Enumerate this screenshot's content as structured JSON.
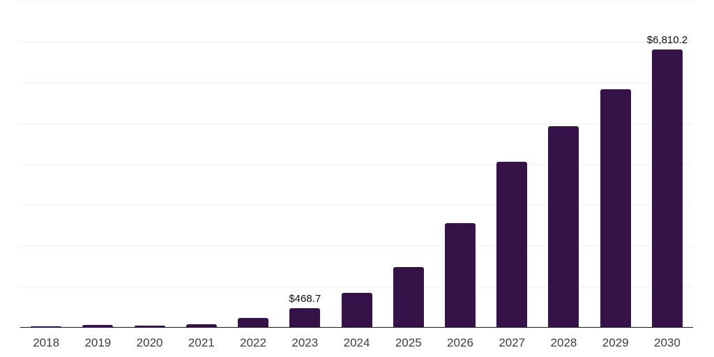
{
  "chart_data": {
    "type": "bar",
    "title": "",
    "xlabel": "",
    "ylabel": "",
    "categories": [
      "2018",
      "2019",
      "2020",
      "2021",
      "2022",
      "2023",
      "2024",
      "2025",
      "2026",
      "2027",
      "2028",
      "2029",
      "2030"
    ],
    "values": [
      15,
      45,
      38,
      70,
      215,
      468.7,
      840,
      1470,
      2550,
      4060,
      4930,
      5835,
      6810.2
    ],
    "data_labels": [
      "",
      "",
      "",
      "",
      "",
      "$468.7",
      "",
      "",
      "",
      "",
      "",
      "",
      "$6,810.2"
    ],
    "ylim": [
      0,
      8000
    ],
    "gridline_interval": 1000,
    "grid": true,
    "legend": false,
    "y_tick_labels_visible": false
  },
  "colors": {
    "bar_fill": "#351349",
    "gridline": "#f1f1f1",
    "axis_line": "#1a1a1a",
    "x_label_text": "#3d3d3d",
    "value_label_text": "#0d0d0d",
    "background": "#ffffff"
  }
}
